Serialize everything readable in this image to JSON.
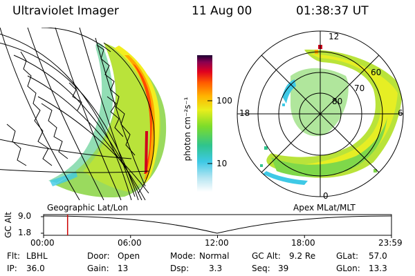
{
  "header": {
    "instrument": "Ultraviolet Imager",
    "date": "11 Aug 00",
    "time": "01:38:37 UT"
  },
  "colorbar": {
    "label": "photon cm⁻²s⁻¹",
    "ticks": [
      "100",
      "10"
    ]
  },
  "polar": {
    "lat_labels": [
      "60",
      "70",
      "80"
    ],
    "mlt_labels": {
      "top": "12",
      "left": "18",
      "right": "6",
      "bottom": "0"
    }
  },
  "panel_labels": {
    "left": "Geographic Lat/Lon",
    "right": "Apex MLat/MLT"
  },
  "timeline": {
    "ylabel": "GC Alt",
    "y_ticks": [
      "9.0",
      "1.8"
    ],
    "x_ticks": [
      "00:00",
      "06:00",
      "12:00",
      "18:00",
      "23:59"
    ],
    "marker_fraction_of_day": 0.069
  },
  "info": {
    "filter_label": "Flt:",
    "filter_value": "LBHL",
    "ip_label": "IP:",
    "ip_value": "36.0",
    "door_label": "Door:",
    "door_value": "Open",
    "gain_label": "Gain:",
    "gain_value": "13",
    "mode_label": "Mode:",
    "mode_value": "Normal",
    "dsp_label": "Dsp:",
    "dsp_value": "3.3",
    "gcalt_label": "GC Alt:",
    "gcalt_value": "9.2 Re",
    "seq_label": "Seq:",
    "seq_value": "39",
    "glat_label": "GLat:",
    "glat_value": "57.0",
    "glon_label": "GLon:",
    "glon_value": "13.3"
  },
  "colors": {
    "line": "#000000",
    "marker": "#cc0000"
  }
}
